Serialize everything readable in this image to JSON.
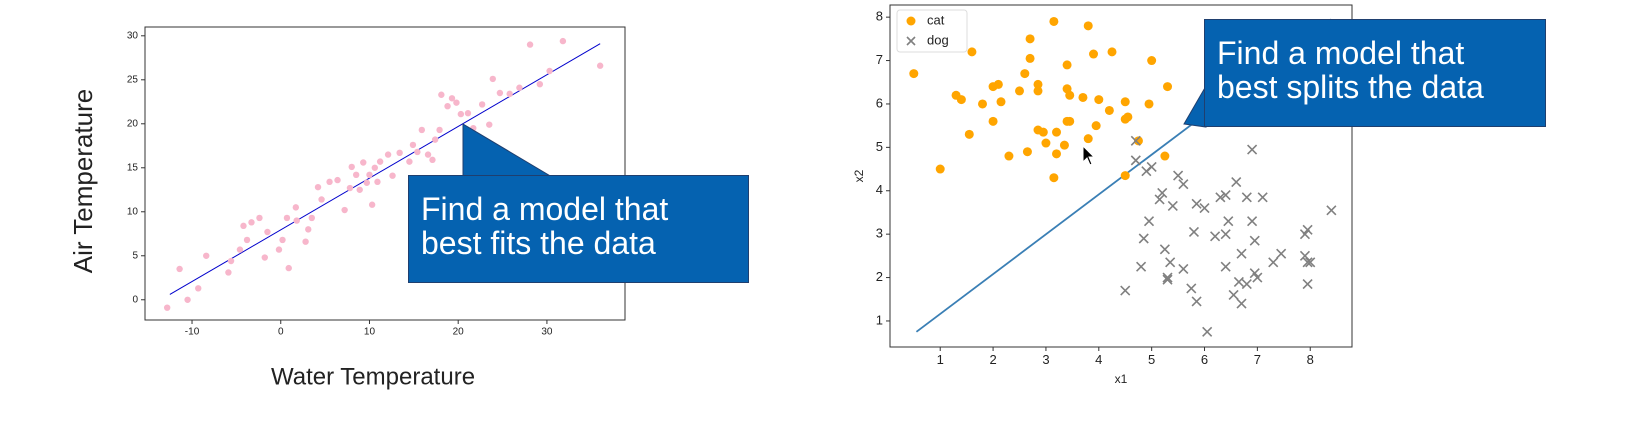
{
  "chart_data": [
    {
      "type": "scatter",
      "xlabel": "Water Temperature",
      "ylabel": "Air Temperature",
      "xlim": [
        -15.3,
        38.8
      ],
      "ylim": [
        -2.3,
        31
      ],
      "xticks": [
        -10,
        0,
        10,
        20,
        30
      ],
      "yticks": [
        0,
        5,
        10,
        15,
        20,
        25,
        30
      ],
      "series": [
        {
          "color": "#f7b6cb",
          "x": [
            -12.8,
            -11.4,
            -10.5,
            -9.3,
            -8.4,
            -5.9,
            -5.6,
            -4.6,
            -4.2,
            -3.8,
            -3.3,
            -2.4,
            -1.8,
            -1.5,
            -0.2,
            0.2,
            0.7,
            0.9,
            1.7,
            1.8,
            2.8,
            3.1,
            3.5,
            4.2,
            4.6,
            5.5,
            6.4,
            7.2,
            7.8,
            8.0,
            8.5,
            8.9,
            9.3,
            9.7,
            10.0,
            10.3,
            10.6,
            10.9,
            11.2,
            12.1,
            12.6,
            13.4,
            14.5,
            14.9,
            15.4,
            15.9,
            16.6,
            17.1,
            17.4,
            17.9,
            18.1,
            18.8,
            19.3,
            19.8,
            20.3,
            21.1,
            21.7,
            22.7,
            23.5,
            23.9,
            24.7,
            25.8,
            26.9,
            28.1,
            29.2,
            30.3,
            31.8,
            36.0
          ],
          "values": [
            -0.9,
            3.5,
            0,
            1.3,
            5.0,
            3.1,
            4.4,
            5.7,
            8.4,
            6.8,
            8.8,
            9.3,
            4.8,
            7.7,
            5.7,
            6.8,
            9.3,
            3.6,
            10.5,
            9.0,
            6.6,
            8.0,
            9.3,
            12.8,
            11.4,
            13.4,
            13.6,
            10.2,
            12.7,
            15.1,
            14.2,
            12.5,
            15.6,
            13.3,
            14.2,
            10.8,
            15.0,
            13.4,
            15.7,
            16.5,
            14.1,
            16.7,
            15.7,
            17.6,
            16.8,
            19.3,
            16.5,
            15.9,
            18.2,
            19.3,
            23.3,
            22.0,
            22.9,
            22.4,
            21.1,
            21.2,
            19.5,
            22.2,
            19.9,
            25.1,
            23.5,
            23.4,
            24.1,
            29.0,
            24.5,
            26.0,
            29.4,
            26.6
          ]
        }
      ],
      "fit_line": {
        "color": "#0000cc",
        "x": [
          -12.5,
          36
        ],
        "values": [
          0.6,
          29.1
        ]
      },
      "annotation": "Find a model that best fits the data"
    },
    {
      "type": "scatter",
      "xlabel": "x1",
      "ylabel": "x2",
      "xlim": [
        0.05,
        8.79
      ],
      "ylim": [
        0.4,
        8.28
      ],
      "xticks": [
        1,
        2,
        3,
        4,
        5,
        6,
        7,
        8
      ],
      "yticks": [
        1,
        2,
        3,
        4,
        5,
        6,
        7,
        8
      ],
      "legend": "upper left",
      "series": [
        {
          "name": "cat",
          "color": "#ffa500",
          "marker": "o",
          "x": [
            0.5,
            1.0,
            1.3,
            1.4,
            1.55,
            1.6,
            1.8,
            2.0,
            2.0,
            2.1,
            2.15,
            2.3,
            2.5,
            2.6,
            2.65,
            2.7,
            2.7,
            2.85,
            2.85,
            2.85,
            2.95,
            3.0,
            3.15,
            3.15,
            3.2,
            3.2,
            3.35,
            3.4,
            3.4,
            3.4,
            3.45,
            3.45,
            3.7,
            3.8,
            3.8,
            3.9,
            3.95,
            4.0,
            4.2,
            4.25,
            4.5,
            4.5,
            4.55,
            4.5,
            4.75,
            4.95,
            5.0,
            5.25,
            5.3
          ],
          "values": [
            6.7,
            4.5,
            6.2,
            6.1,
            5.3,
            7.2,
            6.0,
            5.6,
            6.4,
            6.45,
            6.05,
            4.8,
            6.3,
            6.7,
            4.9,
            7.5,
            7.05,
            6.45,
            6.3,
            5.4,
            5.35,
            5.1,
            7.9,
            4.3,
            5.35,
            4.85,
            5.05,
            6.9,
            6.35,
            5.6,
            5.6,
            6.2,
            6.15,
            7.8,
            5.2,
            7.15,
            5.5,
            6.1,
            5.85,
            7.2,
            6.05,
            5.65,
            5.7,
            4.35,
            5.15,
            6.0,
            7.0,
            4.8,
            6.4
          ]
        },
        {
          "name": "dog",
          "color": "#808080",
          "marker": "x",
          "x": [
            4.5,
            4.7,
            4.7,
            4.8,
            4.85,
            4.9,
            4.95,
            5.0,
            5.2,
            5.15,
            5.25,
            5.3,
            5.3,
            5.35,
            5.4,
            5.5,
            5.6,
            5.6,
            5.75,
            5.8,
            5.85,
            5.85,
            6.0,
            6.05,
            6.2,
            6.3,
            6.4,
            6.4,
            6.4,
            6.45,
            6.55,
            6.6,
            6.65,
            6.7,
            6.7,
            6.8,
            6.8,
            6.9,
            6.9,
            6.95,
            6.95,
            7.0,
            7.1,
            7.3,
            7.45,
            7.9,
            7.9,
            7.95,
            7.95,
            8.0,
            7.95,
            8.4
          ],
          "values": [
            1.7,
            5.15,
            4.7,
            2.25,
            2.9,
            4.45,
            3.3,
            4.55,
            3.95,
            3.8,
            2.65,
            1.95,
            2.0,
            2.35,
            3.65,
            4.35,
            4.15,
            2.2,
            1.75,
            3.05,
            3.7,
            1.45,
            3.6,
            0.75,
            2.95,
            3.85,
            2.25,
            3.0,
            3.9,
            3.3,
            1.6,
            4.2,
            1.9,
            2.55,
            1.4,
            1.85,
            3.85,
            4.95,
            3.3,
            2.85,
            2.1,
            2.0,
            3.85,
            2.35,
            2.55,
            2.5,
            3.0,
            3.1,
            2.35,
            2.35,
            1.85,
            3.55
          ]
        }
      ],
      "boundary": {
        "color": "#3a7fb5",
        "x": [
          0.55,
          8.4
        ],
        "values": [
          0.75,
          7.95
        ]
      },
      "annotation": "Find a model that best splits the data"
    }
  ]
}
